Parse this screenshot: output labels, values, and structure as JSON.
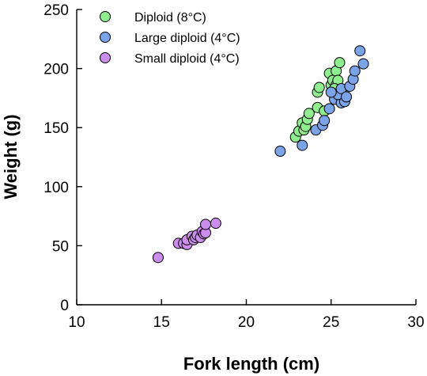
{
  "chart_data": {
    "type": "scatter",
    "xlabel": "Fork length (cm)",
    "ylabel": "Weight (g)",
    "xlim": [
      10,
      30
    ],
    "ylim": [
      0,
      250
    ],
    "xticks": [
      10,
      15,
      20,
      25,
      30
    ],
    "yticks": [
      0,
      50,
      100,
      150,
      200,
      250
    ],
    "grid": false,
    "legend": "top-left",
    "series": [
      {
        "name": "Diploid (8°C)",
        "color": "#90EE90",
        "points": [
          [
            22.9,
            142
          ],
          [
            23.1,
            147
          ],
          [
            23.3,
            154
          ],
          [
            23.4,
            148
          ],
          [
            23.5,
            151
          ],
          [
            23.6,
            157
          ],
          [
            23.7,
            162
          ],
          [
            24.2,
            167
          ],
          [
            24.2,
            180
          ],
          [
            24.3,
            184
          ],
          [
            24.6,
            164
          ],
          [
            24.9,
            196
          ],
          [
            25.0,
            186
          ],
          [
            25.1,
            190
          ],
          [
            25.3,
            198
          ],
          [
            25.5,
            205
          ],
          [
            25.3,
            186
          ],
          [
            25.4,
            190
          ],
          [
            25.2,
            183
          ],
          [
            25.6,
            181
          ]
        ]
      },
      {
        "name": "Large diploid (4°C)",
        "color": "#7BA3E8",
        "points": [
          [
            22.0,
            130
          ],
          [
            23.3,
            135
          ],
          [
            24.1,
            148
          ],
          [
            24.5,
            152
          ],
          [
            24.6,
            156
          ],
          [
            24.9,
            166
          ],
          [
            25.2,
            174
          ],
          [
            25.6,
            171
          ],
          [
            25.8,
            172
          ],
          [
            25.4,
            178
          ],
          [
            25.6,
            183
          ],
          [
            25.9,
            176
          ],
          [
            26.1,
            185
          ],
          [
            26.3,
            191
          ],
          [
            26.4,
            198
          ],
          [
            26.7,
            215
          ],
          [
            26.9,
            204
          ],
          [
            25.0,
            180
          ]
        ]
      },
      {
        "name": "Small diploid (4°C)",
        "color": "#CC8EEC",
        "points": [
          [
            14.8,
            40
          ],
          [
            16.0,
            52
          ],
          [
            16.3,
            52
          ],
          [
            16.5,
            51
          ],
          [
            16.5,
            55
          ],
          [
            16.8,
            58
          ],
          [
            16.9,
            55
          ],
          [
            17.0,
            57
          ],
          [
            17.1,
            59
          ],
          [
            17.3,
            57
          ],
          [
            17.4,
            62
          ],
          [
            17.5,
            60
          ],
          [
            17.6,
            61
          ],
          [
            17.6,
            68
          ],
          [
            18.2,
            69
          ]
        ]
      }
    ]
  }
}
